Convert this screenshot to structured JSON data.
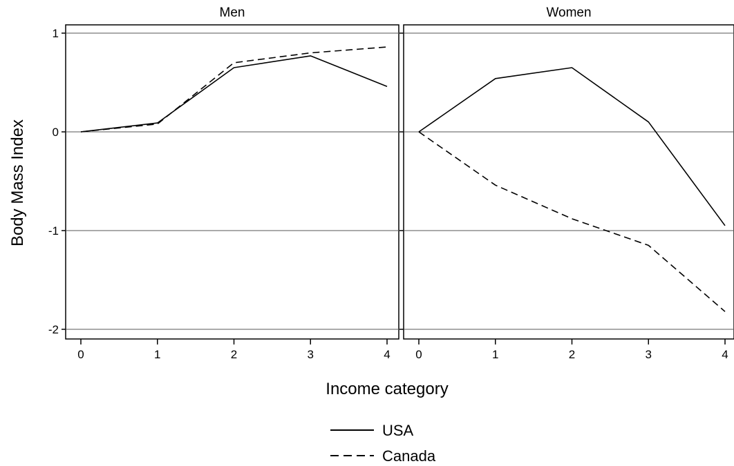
{
  "chart_data": [
    {
      "type": "line",
      "title": "Men",
      "x": [
        0,
        1,
        2,
        3,
        4
      ],
      "series": [
        {
          "name": "USA",
          "values": [
            0,
            0.09,
            0.65,
            0.77,
            0.46
          ]
        },
        {
          "name": "Canada",
          "values": [
            0,
            0.08,
            0.7,
            0.8,
            0.86
          ]
        }
      ],
      "xlim": [
        -0.1,
        4.1
      ],
      "ylim": [
        -2.1,
        1.1
      ],
      "xticks": [
        0,
        1,
        2,
        3,
        4
      ],
      "yticks": [
        1,
        0,
        -1,
        -2
      ],
      "grid": true
    },
    {
      "type": "line",
      "title": "Women",
      "x": [
        0,
        1,
        2,
        3,
        4
      ],
      "series": [
        {
          "name": "USA",
          "values": [
            0,
            0.54,
            0.65,
            0.1,
            -0.95
          ]
        },
        {
          "name": "Canada",
          "values": [
            0,
            -0.54,
            -0.88,
            -1.15,
            -1.82
          ]
        }
      ],
      "xlim": [
        -0.1,
        4.1
      ],
      "ylim": [
        -2.1,
        1.1
      ],
      "xticks": [
        0,
        1,
        2,
        3,
        4
      ],
      "yticks": [
        1,
        0,
        -1,
        -2
      ],
      "grid": true
    }
  ],
  "axes": {
    "ylabel": "Body Mass Index",
    "xlabel": "Income category"
  },
  "legend": {
    "position": "bottom-center",
    "items": [
      {
        "label": "USA",
        "style": "solid"
      },
      {
        "label": "Canada",
        "style": "dashed"
      }
    ]
  },
  "colors": {
    "line": "#000000",
    "grid": "#555555",
    "frame": "#000000"
  }
}
